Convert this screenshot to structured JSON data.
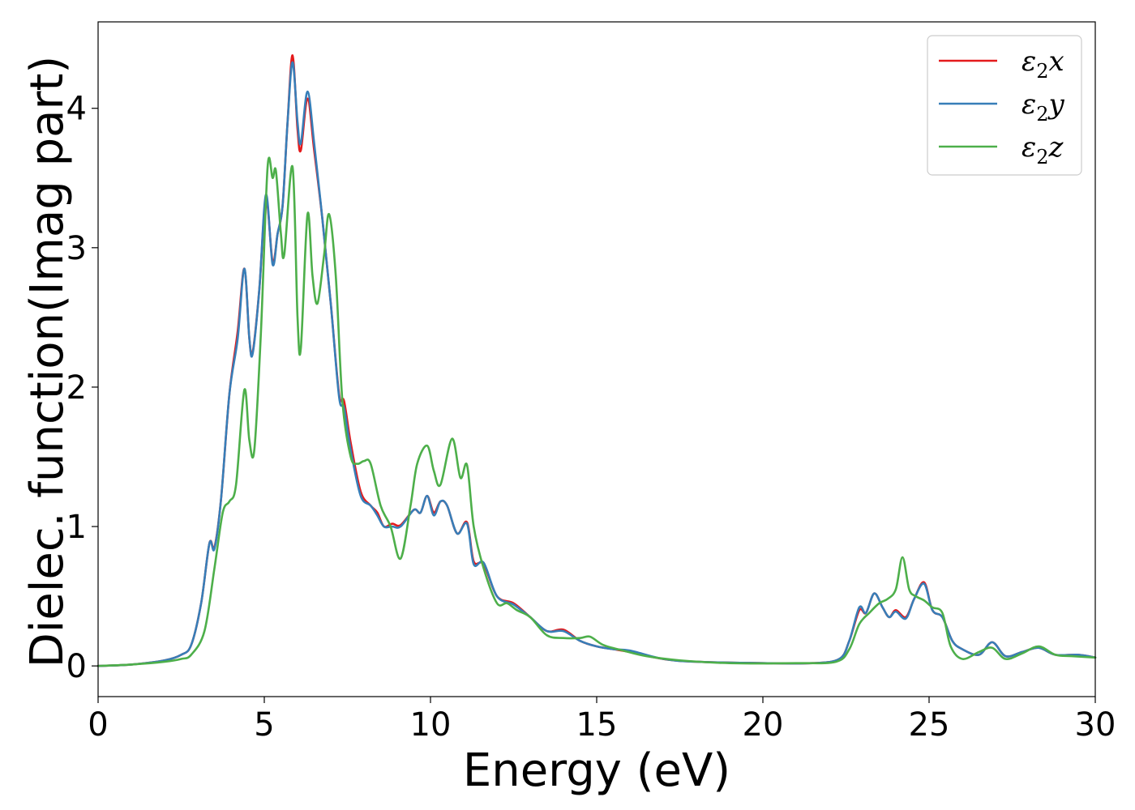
{
  "chart_data": {
    "type": "line",
    "title": "",
    "xlabel": "Energy (eV)",
    "ylabel": "Dielec. function(Imag part)",
    "xlim": [
      0,
      30
    ],
    "ylim": [
      -0.22,
      4.62
    ],
    "xticks": [
      0,
      5,
      10,
      15,
      20,
      25,
      30
    ],
    "yticks": [
      0,
      1,
      2,
      3,
      4
    ],
    "grid": false,
    "legend_position": "top-right",
    "series": [
      {
        "name": "ε2x",
        "label_base": "ε",
        "label_sub": "2",
        "label_suffix": "x",
        "color": "#e41a1c",
        "points": [
          [
            0,
            0
          ],
          [
            1,
            0.01
          ],
          [
            2,
            0.04
          ],
          [
            2.5,
            0.08
          ],
          [
            2.8,
            0.15
          ],
          [
            3.1,
            0.45
          ],
          [
            3.35,
            0.88
          ],
          [
            3.5,
            0.85
          ],
          [
            3.7,
            1.2
          ],
          [
            3.95,
            1.95
          ],
          [
            4.2,
            2.4
          ],
          [
            4.4,
            2.85
          ],
          [
            4.55,
            2.35
          ],
          [
            4.65,
            2.25
          ],
          [
            4.85,
            2.7
          ],
          [
            5.05,
            3.35
          ],
          [
            5.25,
            2.9
          ],
          [
            5.4,
            3.1
          ],
          [
            5.55,
            3.3
          ],
          [
            5.7,
            3.9
          ],
          [
            5.85,
            4.38
          ],
          [
            6.0,
            3.85
          ],
          [
            6.1,
            3.7
          ],
          [
            6.3,
            4.07
          ],
          [
            6.5,
            3.7
          ],
          [
            6.75,
            3.2
          ],
          [
            7.0,
            2.6
          ],
          [
            7.25,
            1.95
          ],
          [
            7.4,
            1.9
          ],
          [
            7.6,
            1.6
          ],
          [
            7.9,
            1.25
          ],
          [
            8.2,
            1.15
          ],
          [
            8.4,
            1.1
          ],
          [
            8.6,
            1.0
          ],
          [
            8.85,
            1.02
          ],
          [
            9.1,
            1.01
          ],
          [
            9.5,
            1.12
          ],
          [
            9.7,
            1.1
          ],
          [
            9.9,
            1.22
          ],
          [
            10.1,
            1.1
          ],
          [
            10.3,
            1.18
          ],
          [
            10.5,
            1.15
          ],
          [
            10.8,
            0.95
          ],
          [
            11.1,
            1.03
          ],
          [
            11.3,
            0.75
          ],
          [
            11.6,
            0.73
          ],
          [
            12.0,
            0.5
          ],
          [
            12.5,
            0.45
          ],
          [
            13.0,
            0.35
          ],
          [
            13.5,
            0.25
          ],
          [
            14.0,
            0.26
          ],
          [
            14.5,
            0.18
          ],
          [
            15.0,
            0.14
          ],
          [
            15.5,
            0.12
          ],
          [
            16.0,
            0.1
          ],
          [
            17.0,
            0.05
          ],
          [
            18.0,
            0.03
          ],
          [
            20.0,
            0.02
          ],
          [
            21.5,
            0.02
          ],
          [
            22.3,
            0.05
          ],
          [
            22.6,
            0.18
          ],
          [
            22.9,
            0.4
          ],
          [
            23.1,
            0.38
          ],
          [
            23.35,
            0.52
          ],
          [
            23.6,
            0.42
          ],
          [
            23.8,
            0.35
          ],
          [
            24.0,
            0.4
          ],
          [
            24.3,
            0.35
          ],
          [
            24.55,
            0.48
          ],
          [
            24.85,
            0.6
          ],
          [
            25.1,
            0.4
          ],
          [
            25.4,
            0.35
          ],
          [
            25.7,
            0.18
          ],
          [
            26.0,
            0.12
          ],
          [
            26.5,
            0.08
          ],
          [
            26.9,
            0.17
          ],
          [
            27.3,
            0.07
          ],
          [
            27.8,
            0.1
          ],
          [
            28.3,
            0.13
          ],
          [
            28.8,
            0.08
          ],
          [
            29.5,
            0.08
          ],
          [
            30.0,
            0.06
          ]
        ]
      },
      {
        "name": "ε2y",
        "label_base": "ε",
        "label_sub": "2",
        "label_suffix": "y",
        "color": "#377eb8",
        "points": [
          [
            0,
            0
          ],
          [
            1,
            0.01
          ],
          [
            2,
            0.04
          ],
          [
            2.5,
            0.08
          ],
          [
            2.8,
            0.15
          ],
          [
            3.1,
            0.45
          ],
          [
            3.35,
            0.88
          ],
          [
            3.5,
            0.84
          ],
          [
            3.7,
            1.2
          ],
          [
            3.95,
            1.95
          ],
          [
            4.2,
            2.35
          ],
          [
            4.4,
            2.85
          ],
          [
            4.55,
            2.35
          ],
          [
            4.65,
            2.24
          ],
          [
            4.85,
            2.7
          ],
          [
            5.05,
            3.38
          ],
          [
            5.25,
            2.88
          ],
          [
            5.4,
            3.1
          ],
          [
            5.55,
            3.3
          ],
          [
            5.7,
            3.9
          ],
          [
            5.85,
            4.33
          ],
          [
            6.0,
            3.9
          ],
          [
            6.1,
            3.75
          ],
          [
            6.3,
            4.12
          ],
          [
            6.5,
            3.75
          ],
          [
            6.75,
            3.2
          ],
          [
            7.0,
            2.6
          ],
          [
            7.25,
            1.93
          ],
          [
            7.4,
            1.85
          ],
          [
            7.6,
            1.55
          ],
          [
            7.9,
            1.22
          ],
          [
            8.2,
            1.15
          ],
          [
            8.4,
            1.08
          ],
          [
            8.6,
            1.0
          ],
          [
            8.85,
            1.0
          ],
          [
            9.1,
            1.0
          ],
          [
            9.5,
            1.12
          ],
          [
            9.7,
            1.1
          ],
          [
            9.9,
            1.22
          ],
          [
            10.1,
            1.08
          ],
          [
            10.3,
            1.18
          ],
          [
            10.5,
            1.15
          ],
          [
            10.8,
            0.95
          ],
          [
            11.1,
            1.02
          ],
          [
            11.3,
            0.73
          ],
          [
            11.6,
            0.74
          ],
          [
            12.0,
            0.5
          ],
          [
            12.5,
            0.44
          ],
          [
            13.0,
            0.35
          ],
          [
            13.5,
            0.25
          ],
          [
            14.0,
            0.25
          ],
          [
            14.5,
            0.18
          ],
          [
            15.0,
            0.14
          ],
          [
            15.5,
            0.12
          ],
          [
            16.0,
            0.11
          ],
          [
            17.0,
            0.05
          ],
          [
            18.0,
            0.03
          ],
          [
            20.0,
            0.02
          ],
          [
            21.5,
            0.02
          ],
          [
            22.3,
            0.05
          ],
          [
            22.6,
            0.18
          ],
          [
            22.9,
            0.42
          ],
          [
            23.1,
            0.38
          ],
          [
            23.35,
            0.52
          ],
          [
            23.6,
            0.42
          ],
          [
            23.8,
            0.35
          ],
          [
            24.0,
            0.39
          ],
          [
            24.3,
            0.34
          ],
          [
            24.55,
            0.48
          ],
          [
            24.85,
            0.59
          ],
          [
            25.1,
            0.4
          ],
          [
            25.4,
            0.35
          ],
          [
            25.7,
            0.18
          ],
          [
            26.0,
            0.12
          ],
          [
            26.5,
            0.08
          ],
          [
            26.9,
            0.17
          ],
          [
            27.3,
            0.07
          ],
          [
            27.8,
            0.1
          ],
          [
            28.3,
            0.13
          ],
          [
            28.8,
            0.08
          ],
          [
            29.5,
            0.08
          ],
          [
            30.0,
            0.06
          ]
        ]
      },
      {
        "name": "ε2z",
        "label_base": "ε",
        "label_sub": "2",
        "label_suffix": "z",
        "color": "#4daf4a",
        "points": [
          [
            0,
            0
          ],
          [
            1,
            0.01
          ],
          [
            2,
            0.03
          ],
          [
            2.5,
            0.05
          ],
          [
            2.8,
            0.08
          ],
          [
            3.2,
            0.25
          ],
          [
            3.5,
            0.7
          ],
          [
            3.75,
            1.1
          ],
          [
            3.95,
            1.18
          ],
          [
            4.15,
            1.3
          ],
          [
            4.4,
            1.98
          ],
          [
            4.55,
            1.62
          ],
          [
            4.7,
            1.55
          ],
          [
            4.9,
            2.4
          ],
          [
            5.1,
            3.58
          ],
          [
            5.25,
            3.5
          ],
          [
            5.35,
            3.55
          ],
          [
            5.5,
            3.1
          ],
          [
            5.6,
            2.95
          ],
          [
            5.85,
            3.58
          ],
          [
            6.0,
            2.5
          ],
          [
            6.1,
            2.28
          ],
          [
            6.3,
            3.24
          ],
          [
            6.45,
            2.8
          ],
          [
            6.6,
            2.6
          ],
          [
            6.8,
            2.95
          ],
          [
            6.95,
            3.24
          ],
          [
            7.15,
            2.8
          ],
          [
            7.35,
            1.9
          ],
          [
            7.6,
            1.5
          ],
          [
            7.8,
            1.45
          ],
          [
            8.0,
            1.47
          ],
          [
            8.2,
            1.45
          ],
          [
            8.5,
            1.15
          ],
          [
            8.8,
            1.0
          ],
          [
            9.1,
            0.77
          ],
          [
            9.4,
            1.15
          ],
          [
            9.6,
            1.45
          ],
          [
            9.9,
            1.58
          ],
          [
            10.1,
            1.4
          ],
          [
            10.3,
            1.3
          ],
          [
            10.65,
            1.63
          ],
          [
            10.9,
            1.35
          ],
          [
            11.1,
            1.44
          ],
          [
            11.3,
            1.0
          ],
          [
            11.6,
            0.7
          ],
          [
            12.0,
            0.45
          ],
          [
            12.3,
            0.45
          ],
          [
            12.6,
            0.4
          ],
          [
            13.0,
            0.35
          ],
          [
            13.5,
            0.22
          ],
          [
            14.0,
            0.2
          ],
          [
            14.5,
            0.2
          ],
          [
            14.8,
            0.21
          ],
          [
            15.2,
            0.15
          ],
          [
            15.8,
            0.11
          ],
          [
            16.5,
            0.07
          ],
          [
            17.5,
            0.04
          ],
          [
            19.0,
            0.02
          ],
          [
            21.0,
            0.02
          ],
          [
            22.2,
            0.03
          ],
          [
            22.6,
            0.12
          ],
          [
            22.9,
            0.3
          ],
          [
            23.2,
            0.38
          ],
          [
            23.5,
            0.45
          ],
          [
            23.75,
            0.48
          ],
          [
            24.0,
            0.55
          ],
          [
            24.2,
            0.78
          ],
          [
            24.4,
            0.55
          ],
          [
            24.6,
            0.5
          ],
          [
            24.85,
            0.47
          ],
          [
            25.1,
            0.42
          ],
          [
            25.4,
            0.38
          ],
          [
            25.65,
            0.14
          ],
          [
            26.0,
            0.05
          ],
          [
            26.5,
            0.1
          ],
          [
            26.9,
            0.13
          ],
          [
            27.3,
            0.05
          ],
          [
            27.8,
            0.09
          ],
          [
            28.3,
            0.14
          ],
          [
            28.8,
            0.08
          ],
          [
            29.3,
            0.07
          ],
          [
            30.0,
            0.06
          ]
        ]
      }
    ]
  }
}
